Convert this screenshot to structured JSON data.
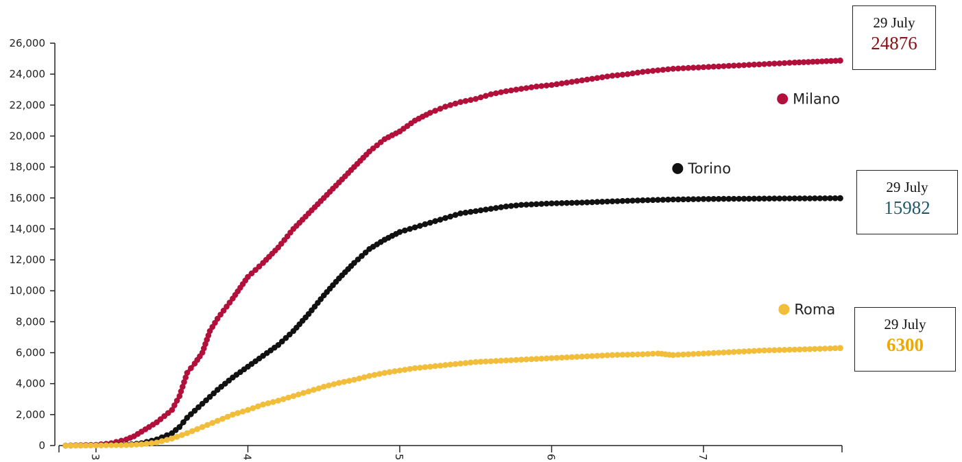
{
  "chart_data": {
    "type": "line",
    "title": "",
    "xlabel": "",
    "ylabel": "",
    "ylim": [
      0,
      26000
    ],
    "xlim": [
      2.8,
      7.9
    ],
    "x_ticks": [
      "3",
      "4",
      "5",
      "6",
      "7"
    ],
    "y_ticks": [
      "0",
      "2,000",
      "4,000",
      "6,000",
      "8,000",
      "10,000",
      "12,000",
      "14,000",
      "16,000",
      "18,000",
      "20,000",
      "22,000",
      "24,000",
      "26,000"
    ],
    "grid": false,
    "series": [
      {
        "name": "Milano",
        "color": "#b0103a",
        "x": [
          2.8,
          3.0,
          3.1,
          3.2,
          3.25,
          3.3,
          3.4,
          3.5,
          3.55,
          3.6,
          3.65,
          3.7,
          3.75,
          3.8,
          3.9,
          4.0,
          4.1,
          4.2,
          4.3,
          4.4,
          4.5,
          4.6,
          4.7,
          4.8,
          4.9,
          5.0,
          5.1,
          5.2,
          5.3,
          5.4,
          5.5,
          5.6,
          5.7,
          5.8,
          5.9,
          6.0,
          6.1,
          6.2,
          6.3,
          6.4,
          6.5,
          6.6,
          6.8,
          7.0,
          7.2,
          7.4,
          7.6,
          7.9
        ],
        "y": [
          0,
          50,
          150,
          400,
          600,
          900,
          1500,
          2300,
          3200,
          4700,
          5300,
          6000,
          7400,
          8200,
          9500,
          10900,
          11800,
          12800,
          14000,
          15000,
          16000,
          17000,
          18000,
          19000,
          19800,
          20300,
          21000,
          21500,
          21900,
          22200,
          22400,
          22700,
          22900,
          23050,
          23200,
          23300,
          23450,
          23600,
          23750,
          23900,
          24000,
          24150,
          24350,
          24450,
          24550,
          24650,
          24750,
          24876
        ]
      },
      {
        "name": "Torino",
        "color": "#111111",
        "x": [
          2.8,
          3.0,
          3.2,
          3.3,
          3.4,
          3.5,
          3.55,
          3.6,
          3.7,
          3.8,
          3.9,
          4.0,
          4.1,
          4.2,
          4.3,
          4.4,
          4.5,
          4.6,
          4.7,
          4.8,
          4.9,
          5.0,
          5.1,
          5.2,
          5.3,
          5.4,
          5.5,
          5.6,
          5.7,
          5.8,
          6.0,
          6.2,
          6.4,
          6.6,
          6.8,
          7.0,
          7.3,
          7.6,
          7.9
        ],
        "y": [
          0,
          20,
          60,
          150,
          400,
          800,
          1200,
          1800,
          2700,
          3600,
          4400,
          5100,
          5800,
          6500,
          7400,
          8500,
          9700,
          10800,
          11800,
          12700,
          13300,
          13800,
          14100,
          14400,
          14700,
          15000,
          15150,
          15300,
          15450,
          15550,
          15650,
          15700,
          15780,
          15850,
          15900,
          15930,
          15950,
          15970,
          15982
        ]
      },
      {
        "name": "Roma",
        "color": "#f1bd3a",
        "x": [
          2.8,
          3.0,
          3.2,
          3.3,
          3.4,
          3.5,
          3.6,
          3.7,
          3.8,
          3.9,
          4.0,
          4.1,
          4.2,
          4.3,
          4.4,
          4.5,
          4.6,
          4.7,
          4.8,
          4.9,
          5.0,
          5.1,
          5.2,
          5.3,
          5.4,
          5.5,
          5.6,
          5.7,
          5.8,
          6.0,
          6.2,
          6.4,
          6.6,
          6.7,
          6.75,
          6.8,
          7.0,
          7.2,
          7.4,
          7.6,
          7.9
        ],
        "y": [
          0,
          10,
          30,
          80,
          200,
          450,
          800,
          1200,
          1600,
          2000,
          2300,
          2650,
          2900,
          3200,
          3500,
          3800,
          4050,
          4250,
          4500,
          4700,
          4850,
          5000,
          5100,
          5200,
          5300,
          5400,
          5450,
          5500,
          5550,
          5650,
          5750,
          5850,
          5900,
          5950,
          5900,
          5850,
          5950,
          6050,
          6150,
          6200,
          6300
        ]
      }
    ],
    "series_labels": [
      {
        "name": "Milano",
        "x": 7.52,
        "y": 22400
      },
      {
        "name": "Torino",
        "x": 6.83,
        "y": 17900
      },
      {
        "name": "Roma",
        "x": 7.53,
        "y": 8800
      }
    ]
  },
  "callouts": [
    {
      "date": "29 July",
      "value": "24876",
      "color": "#8b0f14"
    },
    {
      "date": "29 July",
      "value": "15982",
      "color": "#1f5a6a"
    },
    {
      "date": "29 July",
      "value": "6300",
      "color": "#f0a800"
    }
  ]
}
